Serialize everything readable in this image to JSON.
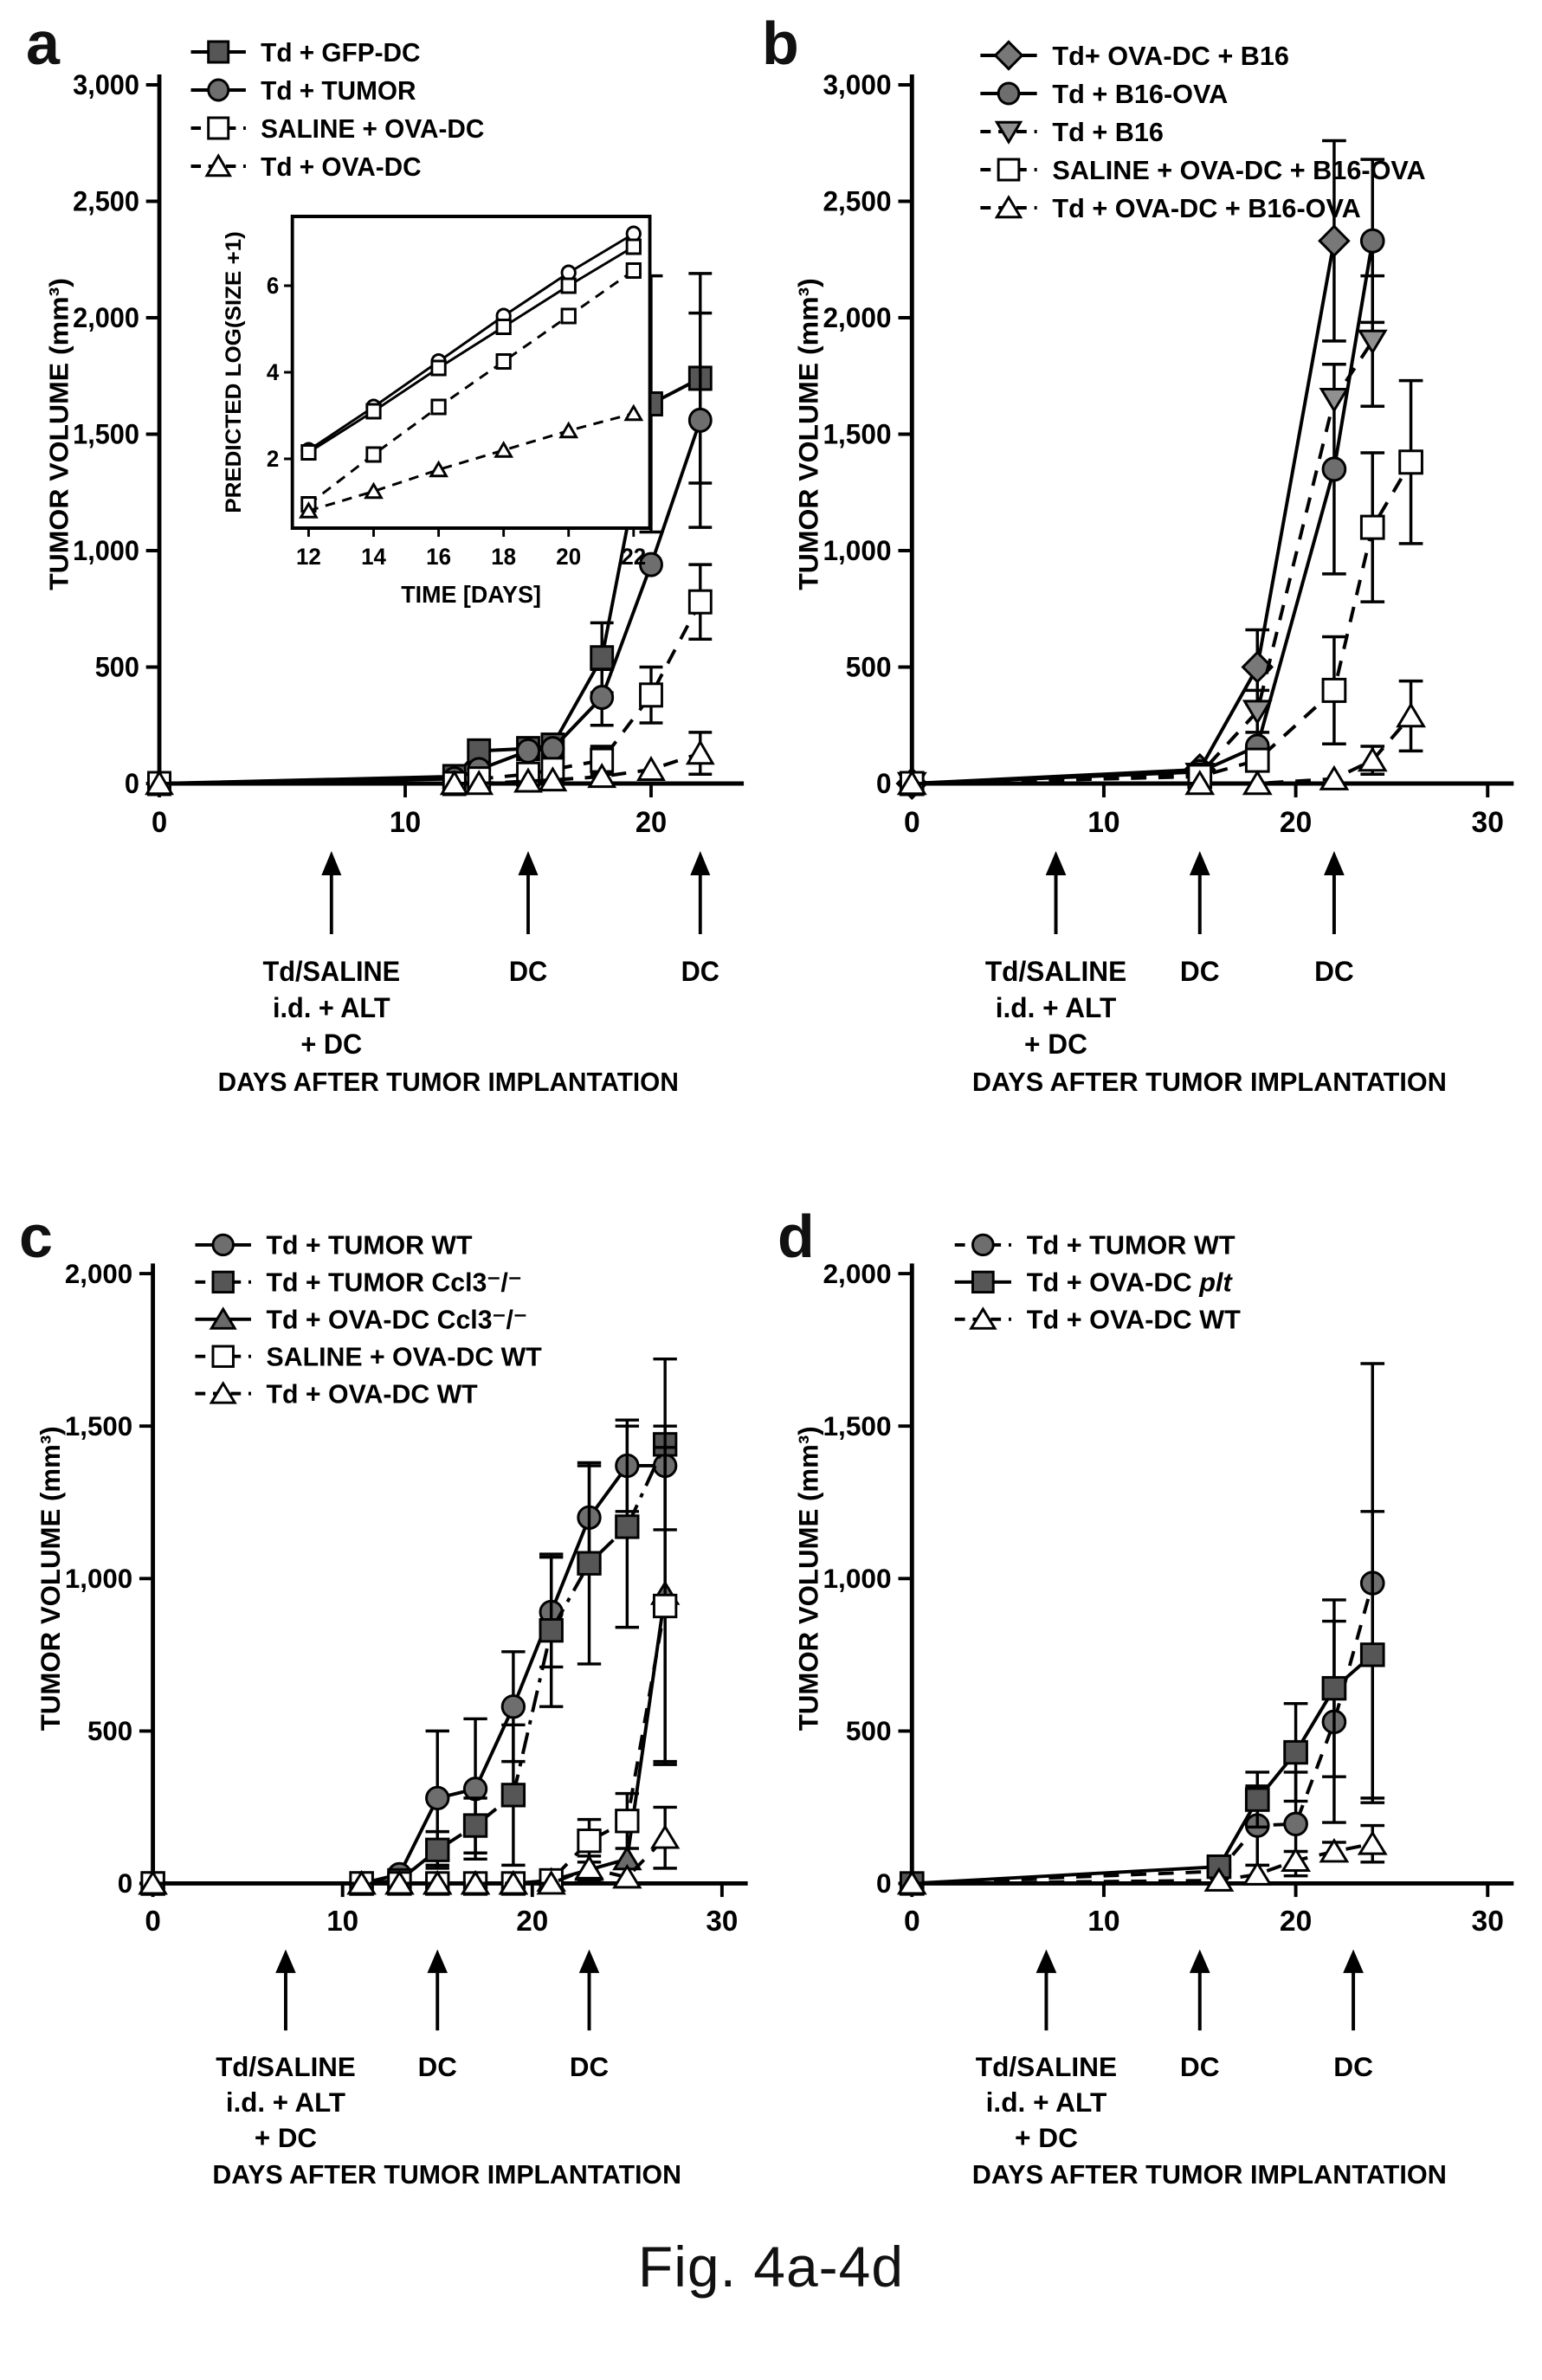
{
  "caption": "Fig. 4a-4d",
  "chart_data": [
    {
      "letter": "a",
      "type": "line",
      "title": "",
      "ylabel": "TUMOR VOLUME (mm³)",
      "xlabel": "DAYS AFTER TUMOR IMPLANTATION",
      "ylim": [
        0,
        3000
      ],
      "yticks": [
        0,
        500,
        1000,
        1500,
        2000,
        2500,
        3000
      ],
      "ytick_labels": [
        "0",
        "500",
        "1,000",
        "1,500",
        "2,000",
        "2,500",
        "3,000"
      ],
      "xlim": [
        0,
        23.5
      ],
      "xticks": [
        0,
        10,
        20
      ],
      "grid": false,
      "legend_position": "top-left-inside",
      "series": [
        {
          "name": "Td + GFP-DC",
          "line": "solid",
          "marker": "square-filled",
          "x": [
            0,
            12,
            13,
            15,
            16,
            18,
            20,
            22
          ],
          "y": [
            0,
            30,
            140,
            150,
            165,
            540,
            1630,
            1740
          ],
          "err": [
            0,
            0,
            0,
            0,
            0,
            150,
            550,
            450
          ]
        },
        {
          "name": "Td + TUMOR",
          "line": "solid",
          "marker": "circle-filled",
          "x": [
            0,
            12,
            13,
            15,
            16,
            18,
            20,
            22
          ],
          "y": [
            0,
            20,
            60,
            140,
            150,
            370,
            940,
            1560
          ],
          "err": [
            0,
            0,
            0,
            0,
            0,
            120,
            0,
            460
          ]
        },
        {
          "name": "SALINE + OVA-DC",
          "line": "dashed",
          "marker": "square-open",
          "x": [
            0,
            12,
            13,
            15,
            16,
            18,
            20,
            22
          ],
          "y": [
            0,
            0,
            20,
            40,
            60,
            100,
            380,
            780
          ],
          "err": [
            0,
            0,
            0,
            0,
            0,
            60,
            120,
            160
          ]
        },
        {
          "name": "Td + OVA-DC",
          "line": "dashed",
          "marker": "triangle-open",
          "x": [
            0,
            12,
            13,
            15,
            16,
            18,
            20,
            22
          ],
          "y": [
            0,
            0,
            0,
            10,
            15,
            30,
            60,
            130
          ],
          "err": [
            0,
            0,
            0,
            0,
            0,
            0,
            0,
            90
          ]
        }
      ],
      "annotations": [
        {
          "day": 7,
          "lines": [
            "Td/SALINE",
            "i.d. + ALT",
            "+ DC"
          ]
        },
        {
          "day": 15,
          "lines": [
            "DC"
          ]
        },
        {
          "day": 22,
          "lines": [
            "DC"
          ]
        }
      ],
      "inset": {
        "ylabel": "PREDICTED LOG(SIZE +1)",
        "xlabel": "TIME [DAYS]",
        "xlim": [
          11.5,
          22.5
        ],
        "xticks": [
          12,
          14,
          16,
          18,
          20,
          22
        ],
        "ylim": [
          0.4,
          7.6
        ],
        "yticks": [
          2,
          4,
          6
        ],
        "series": [
          {
            "name": "Td + TUMOR",
            "line": "solid",
            "marker": "circle-open",
            "x": [
              12,
              14,
              16,
              18,
              20,
              22
            ],
            "y": [
              2.2,
              3.2,
              4.25,
              5.3,
              6.3,
              7.2
            ]
          },
          {
            "name": "Td + GFP-DC",
            "line": "solid",
            "marker": "square-open",
            "x": [
              12,
              14,
              16,
              18,
              20,
              22
            ],
            "y": [
              2.15,
              3.1,
              4.1,
              5.05,
              6.0,
              6.9
            ]
          },
          {
            "name": "SALINE + OVA-DC",
            "line": "dashed",
            "marker": "square-open",
            "x": [
              12,
              14,
              16,
              18,
              20,
              22
            ],
            "y": [
              0.95,
              2.1,
              3.2,
              4.25,
              5.3,
              6.35
            ]
          },
          {
            "name": "Td + OVA-DC",
            "line": "dashed",
            "marker": "triangle-open",
            "x": [
              12,
              14,
              16,
              18,
              20,
              22
            ],
            "y": [
              0.8,
              1.25,
              1.75,
              2.2,
              2.65,
              3.05
            ]
          }
        ]
      }
    },
    {
      "letter": "b",
      "type": "line",
      "title": "",
      "ylabel": "TUMOR VOLUME (mm³)",
      "xlabel": "DAYS AFTER TUMOR IMPLANTATION",
      "ylim": [
        0,
        3000
      ],
      "yticks": [
        0,
        500,
        1000,
        1500,
        2000,
        2500,
        3000
      ],
      "ytick_labels": [
        "0",
        "500",
        "1,000",
        "1,500",
        "2,000",
        "2,500",
        "3,000"
      ],
      "xlim": [
        0,
        31
      ],
      "xticks": [
        0,
        10,
        20,
        30
      ],
      "grid": false,
      "legend_position": "top-left-inside",
      "series": [
        {
          "name": "Td+ OVA-DC + B16",
          "line": "solid",
          "marker": "diamond-filled",
          "x": [
            0,
            15,
            18,
            22
          ],
          "y": [
            0,
            60,
            500,
            2330
          ],
          "err": [
            0,
            0,
            160,
            430
          ]
        },
        {
          "name": "Td + B16-OVA",
          "line": "solid",
          "marker": "circle-filled",
          "x": [
            0,
            15,
            18,
            22,
            24
          ],
          "y": [
            0,
            50,
            160,
            1350,
            2330
          ],
          "err": [
            0,
            0,
            0,
            450,
            350
          ]
        },
        {
          "name": "Td + B16",
          "line": "dashed",
          "marker": "triangle-down-filled",
          "x": [
            0,
            15,
            18,
            22,
            24
          ],
          "y": [
            0,
            40,
            310,
            1650,
            1900
          ],
          "err": [
            0,
            0,
            90,
            0,
            280
          ]
        },
        {
          "name": "SALINE + OVA-DC + B16-OVA",
          "line": "dashed",
          "marker": "square-open",
          "x": [
            0,
            15,
            18,
            22,
            24,
            26
          ],
          "y": [
            0,
            30,
            100,
            400,
            1100,
            1380
          ],
          "err": [
            0,
            0,
            40,
            230,
            320,
            350
          ]
        },
        {
          "name": "Td + OVA-DC + B16-OVA",
          "line": "dashed",
          "marker": "triangle-open",
          "x": [
            0,
            15,
            18,
            22,
            24,
            26
          ],
          "y": [
            0,
            0,
            0,
            20,
            100,
            290
          ],
          "err": [
            0,
            0,
            0,
            0,
            60,
            150
          ]
        }
      ],
      "annotations": [
        {
          "day": 7.5,
          "lines": [
            "Td/SALINE",
            "i.d. + ALT",
            "+ DC"
          ]
        },
        {
          "day": 15,
          "lines": [
            "DC"
          ]
        },
        {
          "day": 22,
          "lines": [
            "DC"
          ]
        }
      ]
    },
    {
      "letter": "c",
      "type": "line",
      "title": "",
      "ylabel": "TUMOR VOLUME (mm³)",
      "xlabel": "DAYS AFTER TUMOR IMPLANTATION",
      "ylim": [
        0,
        2000
      ],
      "yticks": [
        0,
        500,
        1000,
        1500,
        2000
      ],
      "ytick_labels": [
        "0",
        "500",
        "1,000",
        "1,500",
        "2,000"
      ],
      "xlim": [
        0,
        31
      ],
      "xticks": [
        0,
        10,
        20,
        30
      ],
      "grid": false,
      "legend_position": "top-left-inside",
      "series": [
        {
          "name": "Td + TUMOR WT",
          "line": "solid",
          "marker": "circle-filled",
          "x": [
            0,
            11,
            13,
            15,
            17,
            19,
            21,
            23,
            25,
            27
          ],
          "y": [
            0,
            0,
            30,
            280,
            310,
            580,
            890,
            1200,
            1370,
            1370
          ],
          "err": [
            0,
            0,
            0,
            220,
            230,
            180,
            180,
            170,
            150,
            0
          ]
        },
        {
          "name": "Td + TUMOR Ccl3⁻/⁻",
          "line": "dashdot",
          "marker": "square-filled",
          "x": [
            0,
            11,
            13,
            15,
            17,
            19,
            21,
            23,
            25,
            27
          ],
          "y": [
            0,
            0,
            10,
            110,
            190,
            290,
            830,
            1050,
            1170,
            1440
          ],
          "err": [
            0,
            0,
            0,
            60,
            90,
            230,
            250,
            330,
            330,
            280
          ]
        },
        {
          "name": "Td + OVA-DC Ccl3⁻/⁻",
          "line": "solid",
          "marker": "triangle-filled",
          "x": [
            0,
            11,
            13,
            15,
            17,
            19,
            21,
            23,
            25,
            27
          ],
          "y": [
            0,
            0,
            0,
            0,
            0,
            0,
            10,
            45,
            80,
            950
          ],
          "err": [
            0,
            0,
            0,
            0,
            0,
            0,
            0,
            0,
            0,
            550
          ]
        },
        {
          "name": "SALINE + OVA-DC WT",
          "line": "dashed",
          "marker": "square-open",
          "x": [
            0,
            11,
            13,
            15,
            17,
            19,
            21,
            23,
            25,
            27
          ],
          "y": [
            0,
            0,
            0,
            0,
            0,
            0,
            10,
            140,
            205,
            910
          ],
          "err": [
            0,
            0,
            0,
            0,
            0,
            0,
            0,
            70,
            90,
            520
          ]
        },
        {
          "name": "Td + OVA-DC WT",
          "line": "dashed",
          "marker": "triangle-open",
          "x": [
            0,
            11,
            13,
            15,
            17,
            19,
            21,
            23,
            25,
            27
          ],
          "y": [
            0,
            0,
            0,
            0,
            0,
            0,
            0,
            50,
            20,
            150
          ],
          "err": [
            0,
            0,
            0,
            0,
            0,
            0,
            0,
            40,
            0,
            100
          ]
        }
      ],
      "annotations": [
        {
          "day": 7,
          "lines": [
            "Td/SALINE",
            "i.d. + ALT",
            "+ DC"
          ]
        },
        {
          "day": 15,
          "lines": [
            "DC"
          ]
        },
        {
          "day": 23,
          "lines": [
            "DC"
          ]
        }
      ]
    },
    {
      "letter": "d",
      "type": "line",
      "title": "",
      "ylabel": "TUMOR VOLUME (mm³)",
      "xlabel": "DAYS AFTER TUMOR IMPLANTATION",
      "ylim": [
        0,
        2000
      ],
      "yticks": [
        0,
        500,
        1000,
        1500,
        2000
      ],
      "ytick_labels": [
        "0",
        "500",
        "1,000",
        "1,500",
        "2,000"
      ],
      "xlim": [
        0,
        31
      ],
      "xticks": [
        0,
        10,
        20,
        30
      ],
      "grid": false,
      "legend_position": "top-left-inside",
      "series": [
        {
          "name": "Td + TUMOR WT",
          "line": "dashed",
          "marker": "circle-filled",
          "x": [
            0,
            16,
            18,
            20,
            22,
            24
          ],
          "y": [
            0,
            40,
            190,
            195,
            530,
            985
          ],
          "err": [
            0,
            0,
            130,
            170,
            330,
            720
          ]
        },
        {
          "name": "Td + OVA-DC ",
          "name_italic": "plt",
          "line": "solid",
          "marker": "square-filled",
          "x": [
            0,
            16,
            18,
            20,
            22,
            24
          ],
          "y": [
            0,
            55,
            275,
            430,
            640,
            750
          ],
          "err": [
            0,
            0,
            90,
            160,
            290,
            470
          ]
        },
        {
          "name": "Td + OVA-DC WT",
          "line": "dashed",
          "marker": "triangle-open",
          "x": [
            0,
            16,
            18,
            20,
            22,
            24
          ],
          "y": [
            0,
            10,
            30,
            75,
            105,
            130
          ],
          "err": [
            0,
            0,
            0,
            30,
            30,
            60
          ]
        }
      ],
      "annotations": [
        {
          "day": 7,
          "lines": [
            "Td/SALINE",
            "i.d. + ALT",
            "+ DC"
          ]
        },
        {
          "day": 15,
          "lines": [
            "DC"
          ]
        },
        {
          "day": 23,
          "lines": [
            "DC"
          ]
        }
      ]
    }
  ]
}
